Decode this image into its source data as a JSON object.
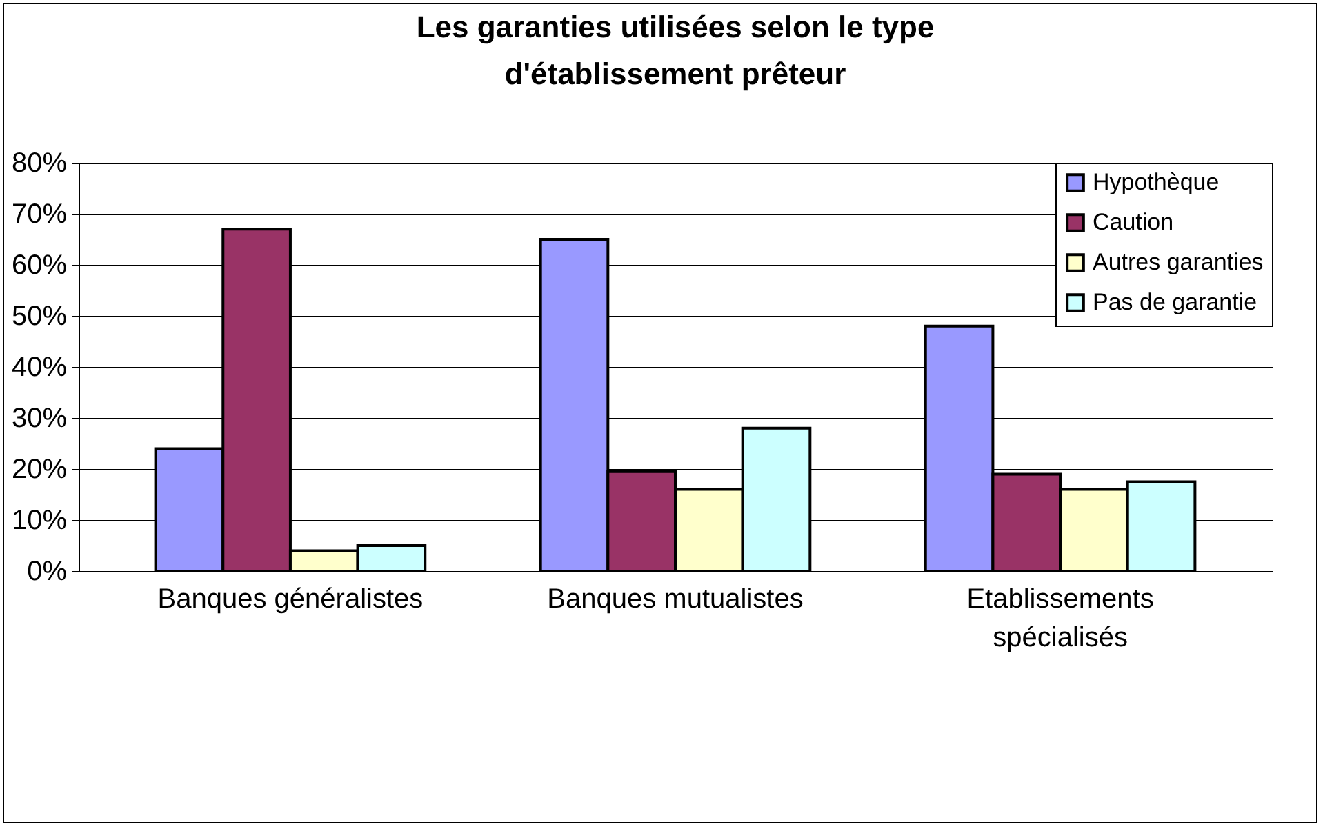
{
  "chart_data": {
    "type": "bar",
    "title": "Les garanties utilisées selon le type d'établissement prêteur",
    "categories": [
      "Banques généralistes",
      "Banques mutualistes",
      "Etablissements spécialisés"
    ],
    "series": [
      {
        "name": "Hypothèque",
        "color": "#9999ff",
        "values": [
          24,
          65,
          48
        ]
      },
      {
        "name": "Caution",
        "color": "#993366",
        "values": [
          67,
          19.5,
          19
        ]
      },
      {
        "name": "Autres garanties",
        "color": "#ffffcc",
        "values": [
          4,
          16,
          16
        ]
      },
      {
        "name": "Pas de garantie",
        "color": "#ccffff",
        "values": [
          5,
          28,
          17.5
        ]
      }
    ],
    "ylim": [
      0,
      80
    ],
    "yticks": [
      {
        "value": 0,
        "label": "0%"
      },
      {
        "value": 10,
        "label": "10%"
      },
      {
        "value": 20,
        "label": "20%"
      },
      {
        "value": 30,
        "label": "30%"
      },
      {
        "value": 40,
        "label": "40%"
      },
      {
        "value": 50,
        "label": "50%"
      },
      {
        "value": 60,
        "label": "60%"
      },
      {
        "value": 70,
        "label": "70%"
      },
      {
        "value": 80,
        "label": "80%"
      }
    ],
    "grid": "y",
    "legend": "top right"
  }
}
